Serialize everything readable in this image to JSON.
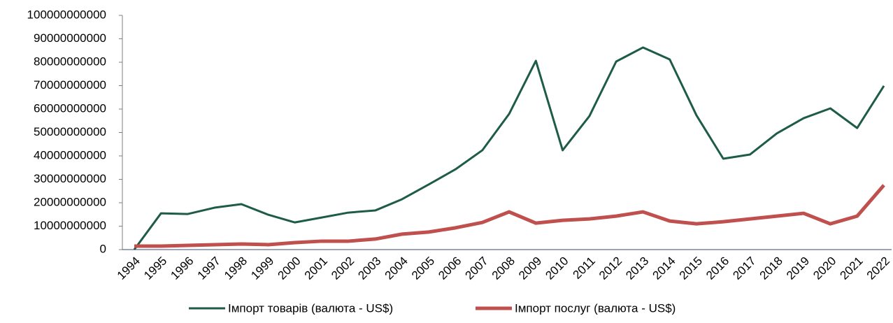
{
  "chart_data": {
    "type": "line",
    "categories": [
      "1994",
      "1995",
      "1996",
      "1997",
      "1998",
      "1999",
      "2000",
      "2001",
      "2002",
      "2003",
      "2004",
      "2005",
      "2006",
      "2007",
      "2008",
      "2009",
      "2010",
      "2011",
      "2012",
      "2013",
      "2014",
      "2015",
      "2016",
      "2017",
      "2018",
      "2019",
      "2020",
      "2021",
      "2022"
    ],
    "series": [
      {
        "name": "Імпорт товарів (валюта - US$)",
        "color": "#1e5c45",
        "values": [
          0,
          15500000000,
          15200000000,
          17900000000,
          19400000000,
          14900000000,
          11600000000,
          13700000000,
          15800000000,
          16700000000,
          21500000000,
          27800000000,
          34300000000,
          42400000000,
          57900000000,
          80600000000,
          42400000000,
          57000000000,
          80300000000,
          86300000000,
          81200000000,
          57300000000,
          38800000000,
          40600000000,
          49600000000,
          56100000000,
          60300000000,
          51900000000,
          69900000000
        ]
      },
      {
        "name": "Імпорт послуг (валюта - US$)",
        "color": "#c0504d",
        "values": [
          1500000000,
          1500000000,
          1800000000,
          2100000000,
          2400000000,
          2100000000,
          3000000000,
          3600000000,
          3600000000,
          4500000000,
          6600000000,
          7500000000,
          9300000000,
          11600000000,
          16100000000,
          11300000000,
          12500000000,
          13100000000,
          14300000000,
          16100000000,
          12200000000,
          11000000000,
          11900000000,
          13100000000,
          14300000000,
          15500000000,
          11000000000,
          14300000000,
          27500000000
        ]
      }
    ],
    "ylim": [
      0,
      100000000000
    ],
    "yticks": [
      0,
      10000000000,
      20000000000,
      30000000000,
      40000000000,
      50000000000,
      60000000000,
      70000000000,
      80000000000,
      90000000000,
      100000000000
    ],
    "legend": "bottom"
  }
}
